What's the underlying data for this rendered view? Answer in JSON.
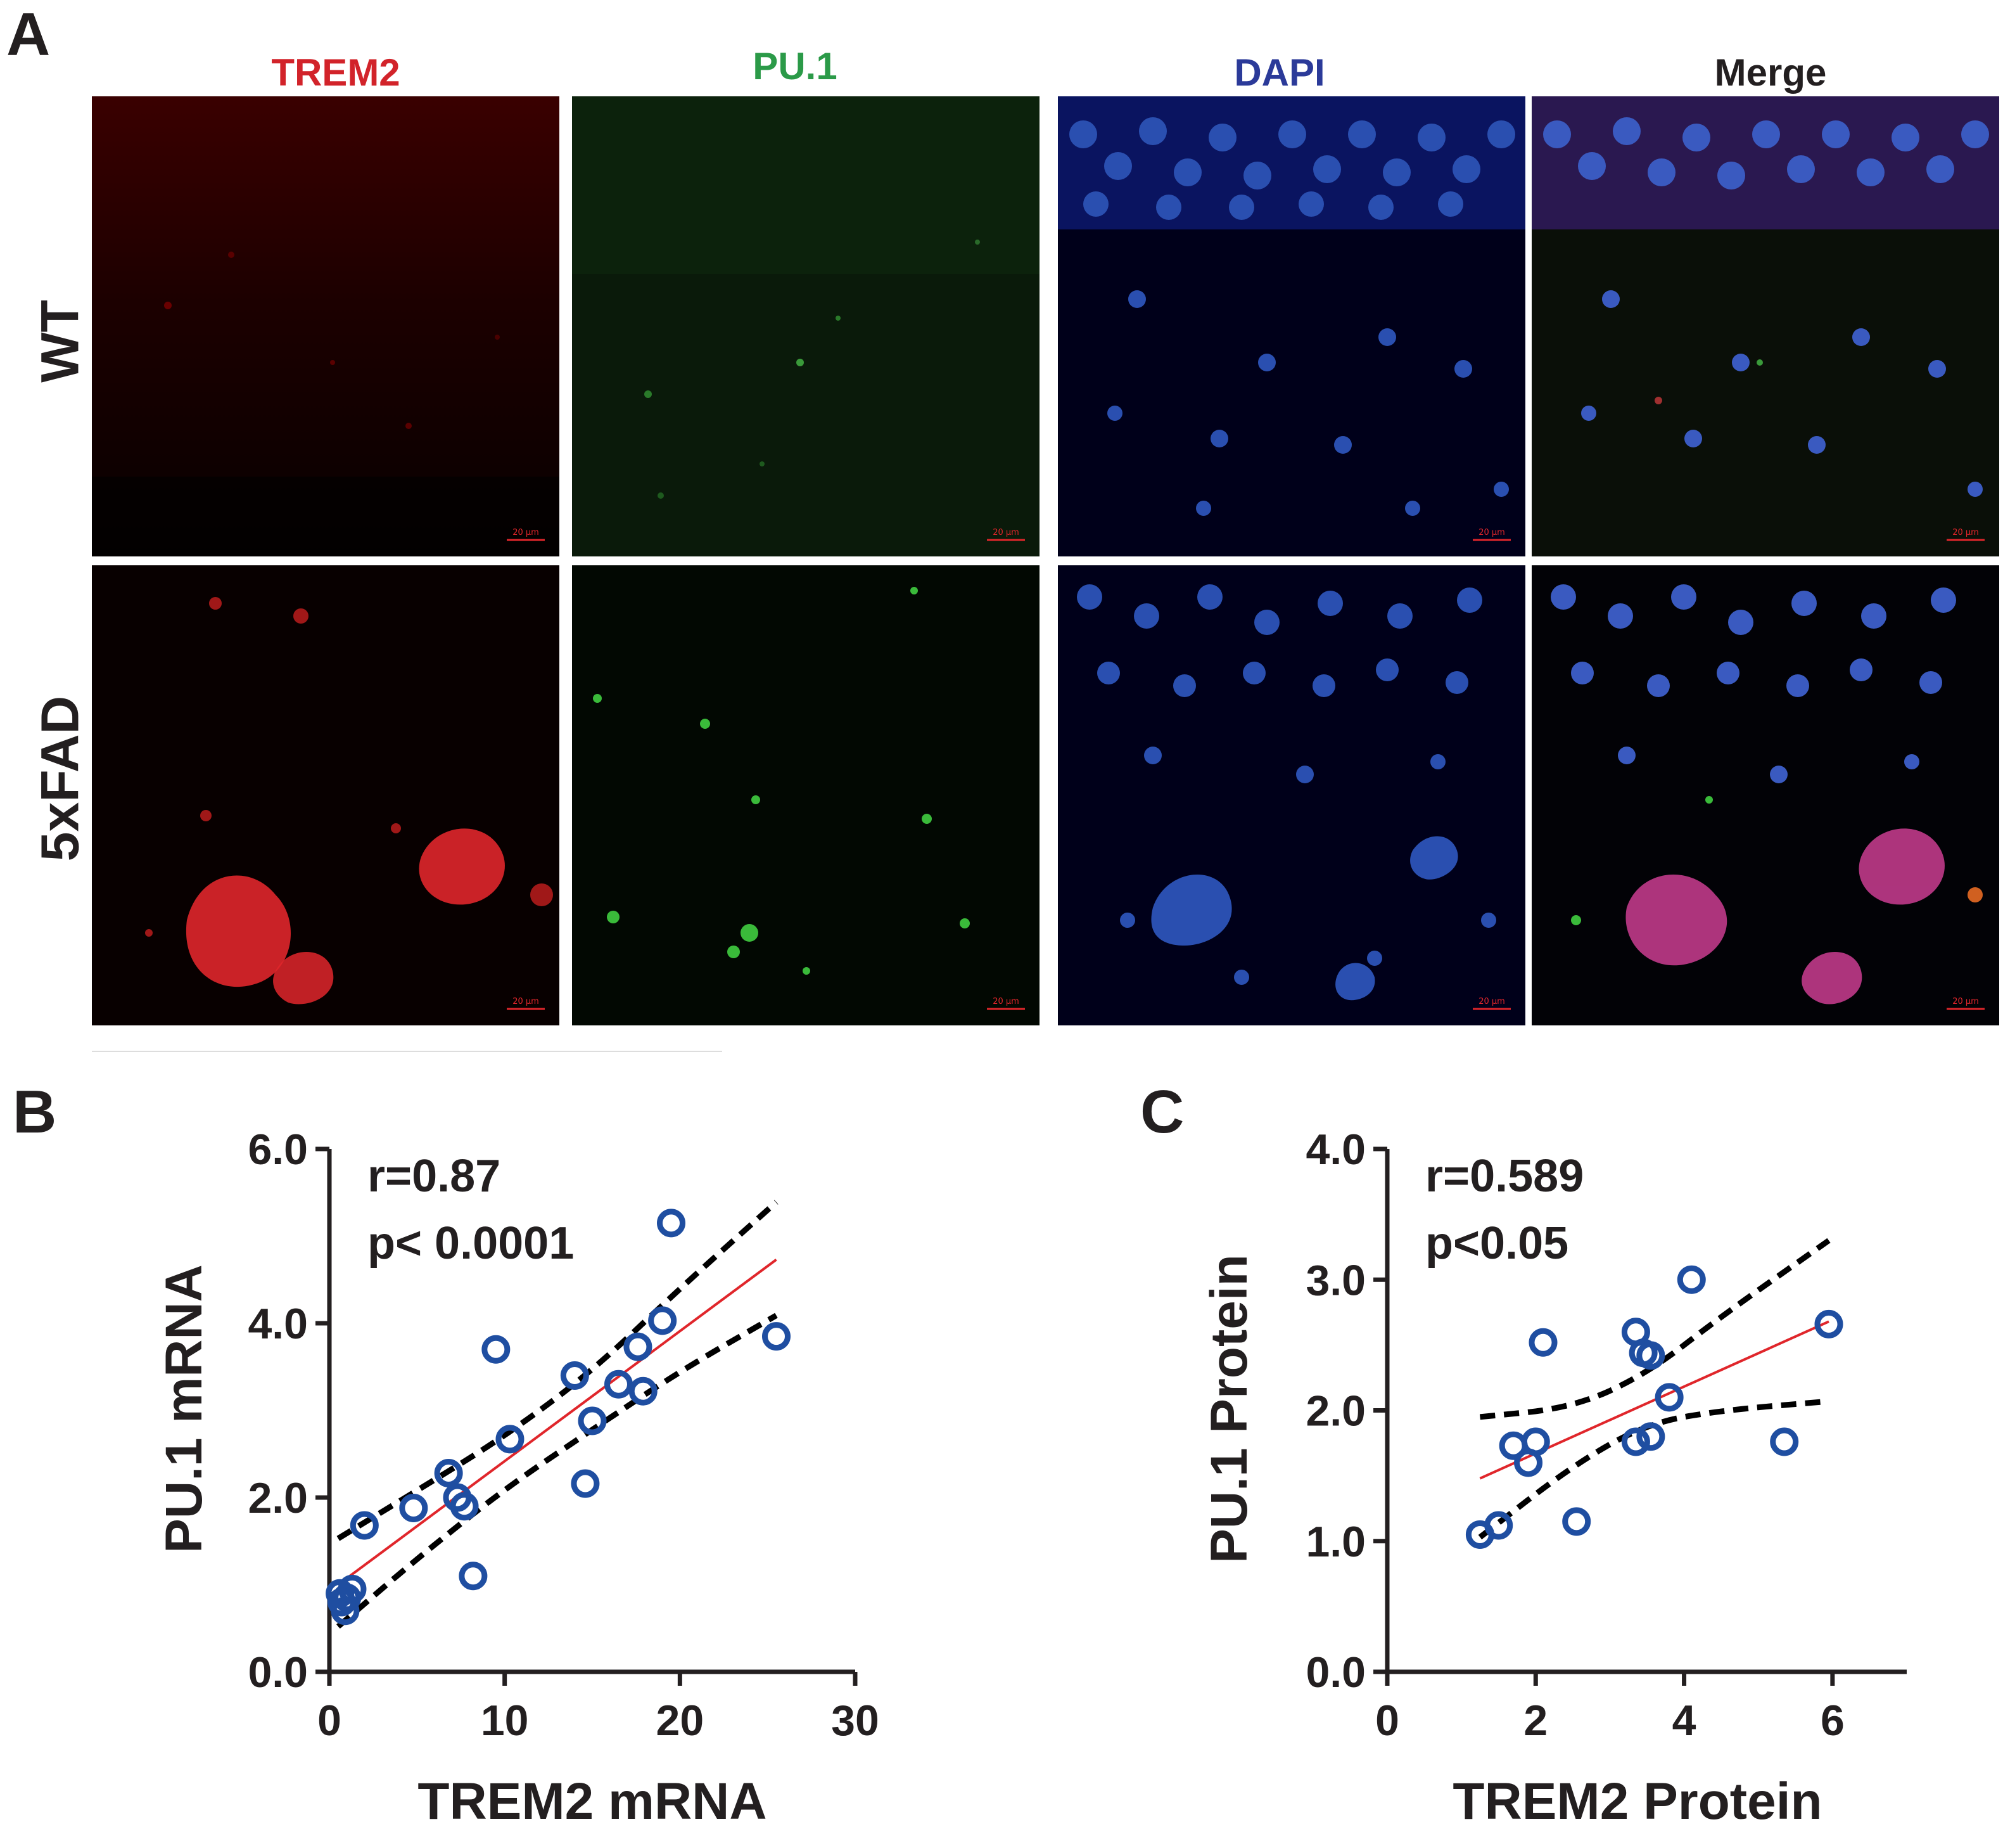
{
  "panel_a": {
    "letter": "A",
    "columns": [
      {
        "label": "TREM2",
        "color": "#d2232a"
      },
      {
        "label": "PU.1",
        "color": "#2b9a48"
      },
      {
        "label": "DAPI",
        "color": "#2b3a99"
      },
      {
        "label": "Merge",
        "color": "#231f20"
      }
    ],
    "rows": [
      {
        "label": "WT"
      },
      {
        "label": "5xFAD"
      }
    ],
    "scale_bar_label": "20 µm"
  },
  "chart_data": [
    {
      "letter": "B",
      "type": "scatter",
      "xlabel": "TREM2 mRNA",
      "ylabel": "PU.1 mRNA",
      "xlim": [
        0,
        30
      ],
      "ylim": [
        0,
        6
      ],
      "xticks": [
        "0",
        "10",
        "20",
        "30"
      ],
      "yticks": [
        "0.0",
        "2.0",
        "4.0",
        "6.0"
      ],
      "annotation_r": "r=0.87",
      "annotation_p": "p< 0.0001",
      "points": [
        [
          0.6,
          0.9
        ],
        [
          0.9,
          0.7
        ],
        [
          1.0,
          0.85
        ],
        [
          1.3,
          0.95
        ],
        [
          0.7,
          0.8
        ],
        [
          2.0,
          1.68
        ],
        [
          4.8,
          1.88
        ],
        [
          6.8,
          2.28
        ],
        [
          7.3,
          2.0
        ],
        [
          7.7,
          1.9
        ],
        [
          8.2,
          1.1
        ],
        [
          9.5,
          3.7
        ],
        [
          10.3,
          2.67
        ],
        [
          14.0,
          3.4
        ],
        [
          14.6,
          2.16
        ],
        [
          15.0,
          2.88
        ],
        [
          16.5,
          3.3
        ],
        [
          17.6,
          3.73
        ],
        [
          17.9,
          3.22
        ],
        [
          19.0,
          4.03
        ],
        [
          19.5,
          5.15
        ],
        [
          25.5,
          3.85
        ]
      ],
      "fit_line": [
        [
          0.5,
          1.0
        ],
        [
          25.5,
          4.73
        ]
      ],
      "ci_upper": [
        [
          0.5,
          1.53
        ],
        [
          5,
          2.08
        ],
        [
          10,
          2.7
        ],
        [
          15,
          3.45
        ],
        [
          20,
          4.4
        ],
        [
          25.5,
          5.39
        ]
      ],
      "ci_lower": [
        [
          0.5,
          0.52
        ],
        [
          5,
          1.3
        ],
        [
          10,
          2.1
        ],
        [
          15,
          2.78
        ],
        [
          20,
          3.45
        ],
        [
          25.5,
          4.09
        ]
      ],
      "series_color": "#1f4ea1",
      "fit_color": "#e0262b"
    },
    {
      "letter": "C",
      "type": "scatter",
      "xlabel": "TREM2 Protein",
      "ylabel": "PU.1 Protein",
      "xlim": [
        0,
        7
      ],
      "ylim": [
        0,
        4
      ],
      "xticks": [
        "0",
        "2",
        "4",
        "6"
      ],
      "yticks": [
        "0.0",
        "1.0",
        "2.0",
        "3.0",
        "4.0"
      ],
      "annotation_r": "r=0.589",
      "annotation_p": "p<0.05",
      "points": [
        [
          1.25,
          1.05
        ],
        [
          1.5,
          1.12
        ],
        [
          1.7,
          1.73
        ],
        [
          1.9,
          1.6
        ],
        [
          2.0,
          1.76
        ],
        [
          2.1,
          2.52
        ],
        [
          2.55,
          1.15
        ],
        [
          3.35,
          2.6
        ],
        [
          3.35,
          1.76
        ],
        [
          3.45,
          2.44
        ],
        [
          3.55,
          1.8
        ],
        [
          3.55,
          2.42
        ],
        [
          3.8,
          2.1
        ],
        [
          4.1,
          3.0
        ],
        [
          5.35,
          1.76
        ],
        [
          5.95,
          2.66
        ]
      ],
      "fit_line": [
        [
          1.25,
          1.48
        ],
        [
          5.95,
          2.68
        ]
      ],
      "ci_upper": [
        [
          1.25,
          1.95
        ],
        [
          2.5,
          2.02
        ],
        [
          3.5,
          2.28
        ],
        [
          4.5,
          2.72
        ],
        [
          5.95,
          3.3
        ]
      ],
      "ci_lower": [
        [
          1.25,
          1.03
        ],
        [
          2.5,
          1.58
        ],
        [
          3.5,
          1.9
        ],
        [
          4.5,
          2.0
        ],
        [
          5.95,
          2.07
        ]
      ],
      "series_color": "#1f4ea1",
      "fit_color": "#e0262b"
    }
  ]
}
